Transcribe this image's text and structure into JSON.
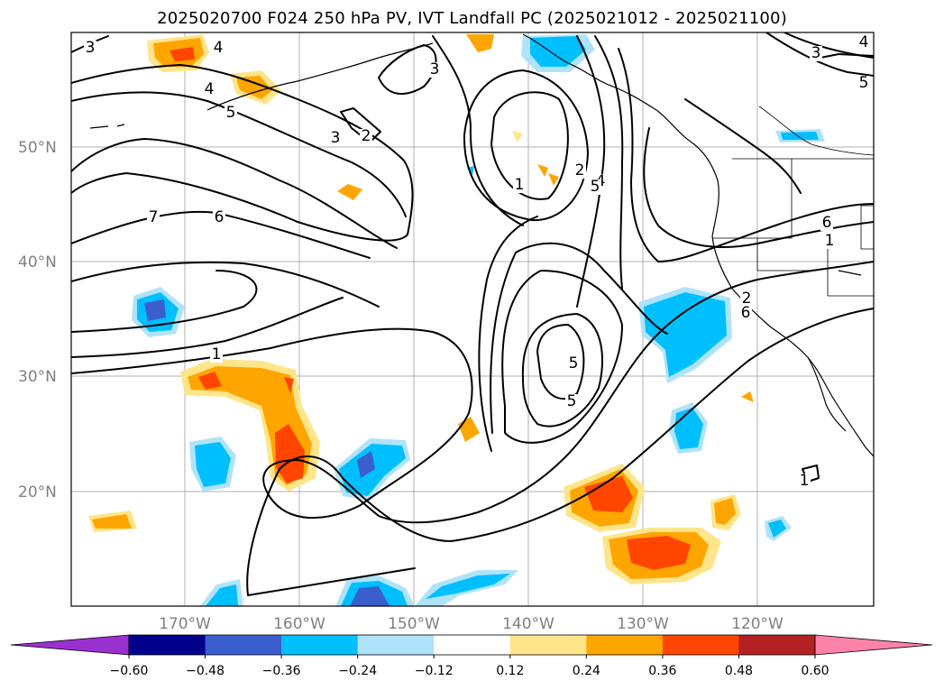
{
  "title": "2025020700 F024 250 hPa PV, IVT Landfall PC (2025021012 - 2025021100)",
  "lat_labels": [
    "50°N",
    "40°N",
    "30°N",
    "20°N"
  ],
  "lon_labels": [
    "170°W",
    "160°W",
    "150°W",
    "140°W",
    "130°W",
    "120°W"
  ],
  "colorbar": {
    "ticks": [
      "−0.60",
      "−0.48",
      "−0.36",
      "−0.24",
      "−0.12",
      "0.12",
      "0.24",
      "0.36",
      "0.48",
      "0.60"
    ],
    "colors": [
      "#9b30d0",
      "#00008b",
      "#3a5fcd",
      "#00bfff",
      "#afe3fa",
      "#ffffff",
      "#ffe58a",
      "#ffa500",
      "#ff4500",
      "#b22222",
      "#ff82a8"
    ]
  },
  "pv_contour_labels": [
    "3",
    "4",
    "4",
    "5",
    "3",
    "2",
    "3",
    "7",
    "6",
    "1",
    "1",
    "2",
    "4",
    "5",
    "6",
    "6",
    "5",
    "3",
    "2",
    "6",
    "5",
    "1",
    "4",
    "5",
    "1"
  ],
  "colors": {
    "positive_low": "#ffe58a",
    "positive_mid": "#ffa500",
    "positive_high": "#ff4500",
    "negative_low": "#afe3fa",
    "negative_mid": "#00bfff",
    "negative_high": "#3a5fcd"
  }
}
